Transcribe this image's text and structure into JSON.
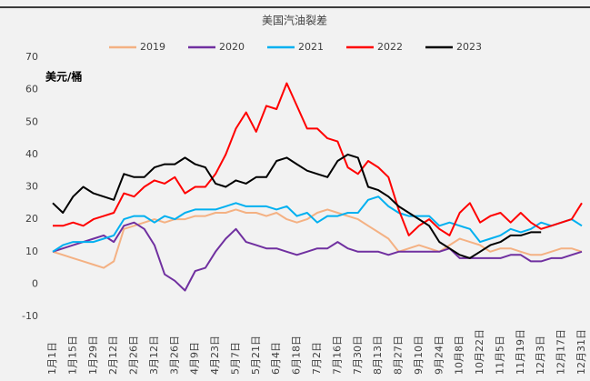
{
  "chart_data": {
    "type": "line",
    "title": "美国汽油裂差",
    "y_label": "美元/桶",
    "categories": [
      "1月1日",
      null,
      "1月15日",
      null,
      "1月29日",
      null,
      "2月12日",
      null,
      "2月26日",
      null,
      "3月12日",
      null,
      "3月26日",
      null,
      "4月9日",
      null,
      "4月23日",
      null,
      "5月7日",
      null,
      "5月21日",
      null,
      "6月4日",
      null,
      "6月18日",
      null,
      "7月2日",
      null,
      "7月16日",
      null,
      "7月30日",
      null,
      "8月13日",
      null,
      "8月27日",
      null,
      "9月10日",
      null,
      "9月24日",
      null,
      "10月8日",
      null,
      "10月22日",
      null,
      "11月5日",
      null,
      "11月19日",
      null,
      "12月3日",
      null,
      "12月17日",
      null,
      "12月31日"
    ],
    "series": [
      {
        "name": "2019",
        "color": "#f4b183",
        "values": [
          10,
          9,
          8,
          7,
          6,
          5,
          7,
          17,
          18,
          19,
          20,
          19,
          20,
          20,
          21,
          21,
          22,
          22,
          23,
          22,
          22,
          21,
          22,
          20,
          19,
          20,
          22,
          23,
          22,
          21,
          20,
          18,
          16,
          14,
          10,
          11,
          12,
          11,
          10,
          12,
          14,
          13,
          12,
          10,
          11,
          11,
          10,
          9,
          9,
          10,
          11,
          11,
          10
        ]
      },
      {
        "name": "2020",
        "color": "#7030a0",
        "values": [
          10,
          11,
          12,
          13,
          14,
          15,
          13,
          18,
          19,
          17,
          12,
          3,
          1,
          -2,
          4,
          5,
          10,
          14,
          17,
          13,
          12,
          11,
          11,
          10,
          9,
          10,
          11,
          11,
          13,
          11,
          10,
          10,
          10,
          9,
          10,
          10,
          10,
          10,
          10,
          11,
          8,
          8,
          8,
          8,
          8,
          9,
          9,
          7,
          7,
          8,
          8,
          9,
          10
        ]
      },
      {
        "name": "2021",
        "color": "#00b0f0",
        "values": [
          10,
          12,
          13,
          13,
          13,
          14,
          15,
          20,
          21,
          21,
          19,
          21,
          20,
          22,
          23,
          23,
          23,
          24,
          25,
          24,
          24,
          24,
          23,
          24,
          21,
          22,
          19,
          21,
          21,
          22,
          22,
          26,
          27,
          24,
          22,
          21,
          21,
          21,
          18,
          19,
          18,
          17,
          13,
          14,
          15,
          17,
          16,
          17,
          19,
          18,
          19,
          20,
          18
        ]
      },
      {
        "name": "2022",
        "color": "#ff0000",
        "values": [
          18,
          18,
          19,
          18,
          20,
          21,
          22,
          28,
          27,
          30,
          32,
          31,
          33,
          28,
          30,
          30,
          34,
          40,
          48,
          53,
          47,
          55,
          54,
          62,
          55,
          48,
          48,
          45,
          44,
          36,
          34,
          38,
          36,
          33,
          23,
          15,
          18,
          20,
          17,
          15,
          22,
          25,
          19,
          21,
          22,
          19,
          22,
          19,
          17,
          18,
          19,
          20,
          25
        ]
      },
      {
        "name": "2023",
        "color": "#000000",
        "values": [
          25,
          22,
          27,
          30,
          28,
          27,
          26,
          34,
          33,
          33,
          36,
          37,
          37,
          39,
          37,
          36,
          31,
          30,
          32,
          31,
          33,
          33,
          38,
          39,
          37,
          35,
          34,
          33,
          38,
          40,
          39,
          30,
          29,
          27,
          24,
          22,
          20,
          18,
          13,
          11,
          9,
          8,
          10,
          12,
          13,
          15,
          15,
          16,
          16,
          null,
          null,
          null,
          null
        ]
      }
    ],
    "ylim": [
      -10,
      70
    ],
    "yticks": [
      -10,
      0,
      10,
      20,
      30,
      40,
      50,
      60,
      70
    ],
    "grid": false
  }
}
